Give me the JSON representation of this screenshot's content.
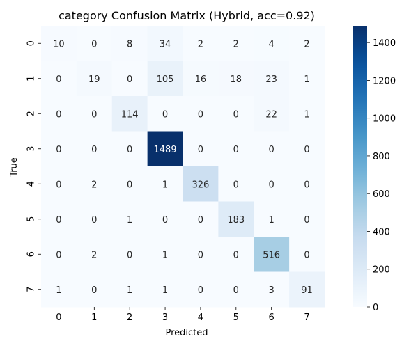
{
  "chart_data": {
    "type": "heatmap",
    "title": "category Confusion Matrix (Hybrid, acc=0.92)",
    "xlabel": "Predicted",
    "ylabel": "True",
    "x_categories": [
      "0",
      "1",
      "2",
      "3",
      "4",
      "5",
      "6",
      "7"
    ],
    "y_categories": [
      "0",
      "1",
      "2",
      "3",
      "4",
      "5",
      "6",
      "7"
    ],
    "matrix": [
      [
        10,
        0,
        8,
        34,
        2,
        2,
        4,
        2
      ],
      [
        0,
        19,
        0,
        105,
        16,
        18,
        23,
        1
      ],
      [
        0,
        0,
        114,
        0,
        0,
        0,
        22,
        1
      ],
      [
        0,
        0,
        0,
        1489,
        0,
        0,
        0,
        0
      ],
      [
        0,
        2,
        0,
        1,
        326,
        0,
        0,
        0
      ],
      [
        0,
        0,
        1,
        0,
        0,
        183,
        1,
        0
      ],
      [
        0,
        2,
        0,
        1,
        0,
        0,
        516,
        0
      ],
      [
        1,
        0,
        1,
        1,
        0,
        0,
        3,
        91
      ]
    ],
    "colorbar": {
      "min": 0,
      "max": 1489,
      "ticks": [
        0,
        200,
        400,
        600,
        800,
        1000,
        1200,
        1400
      ]
    },
    "colormap": "Blues",
    "colormap_low": "#f7fbff",
    "colormap_high": "#08306b",
    "annotations": true,
    "grid": false
  }
}
